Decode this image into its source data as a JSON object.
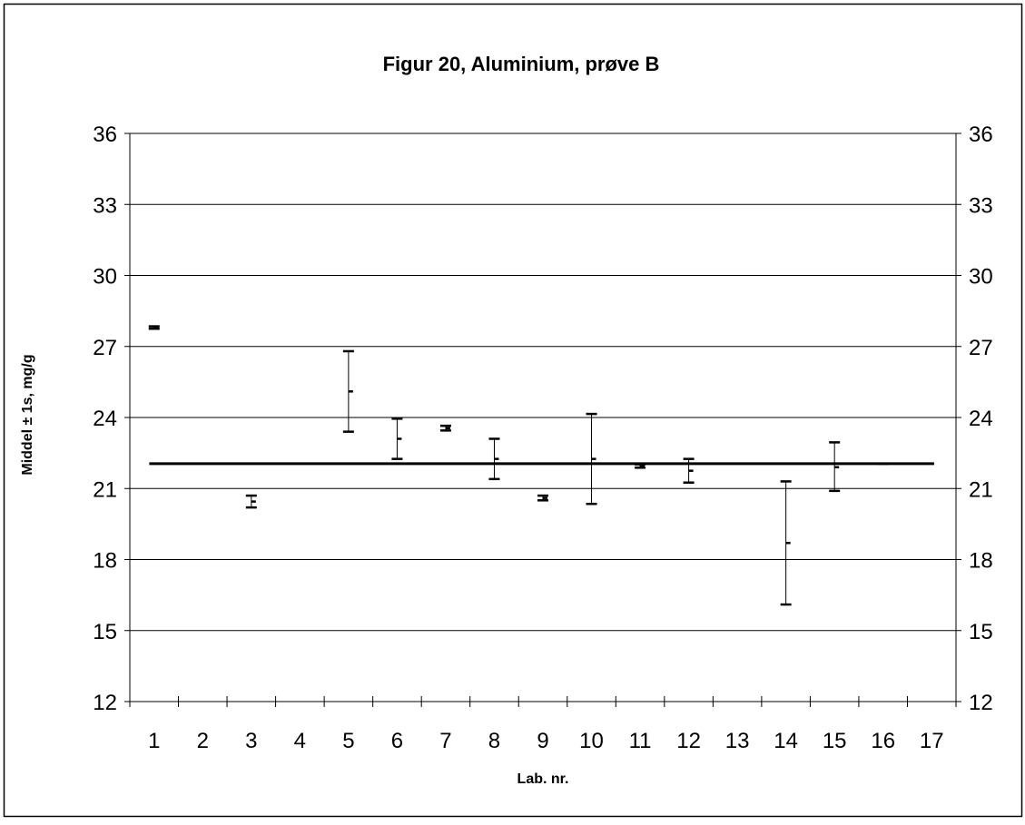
{
  "chart_data": {
    "type": "scatter",
    "title": "Figur 20, Aluminium, prøve B",
    "xlabel": "Lab. nr.",
    "ylabel": "Middel ± 1s, mg/g",
    "categories": [
      "1",
      "2",
      "3",
      "4",
      "5",
      "6",
      "7",
      "8",
      "9",
      "10",
      "11",
      "12",
      "13",
      "14",
      "15",
      "16",
      "17"
    ],
    "ylim": [
      12,
      36
    ],
    "yticks": [
      12,
      15,
      18,
      21,
      24,
      27,
      30,
      33,
      36
    ],
    "grid": true,
    "reference_line": 22.05,
    "series": [
      {
        "points": [
          {
            "lab": 1,
            "mean": 27.8,
            "low": 27.75,
            "high": 27.85
          },
          {
            "lab": 3,
            "mean": 20.45,
            "low": 20.2,
            "high": 20.7
          },
          {
            "lab": 5,
            "mean": 25.1,
            "low": 23.4,
            "high": 26.8
          },
          {
            "lab": 6,
            "mean": 23.1,
            "low": 22.25,
            "high": 23.95
          },
          {
            "lab": 7,
            "mean": 23.55,
            "low": 23.45,
            "high": 23.65
          },
          {
            "lab": 8,
            "mean": 22.25,
            "low": 21.4,
            "high": 23.1
          },
          {
            "lab": 9,
            "mean": 20.6,
            "low": 20.5,
            "high": 20.7
          },
          {
            "lab": 10,
            "mean": 22.25,
            "low": 20.35,
            "high": 24.15
          },
          {
            "lab": 11,
            "mean": 21.95,
            "low": 21.88,
            "high": 22.02
          },
          {
            "lab": 12,
            "mean": 21.75,
            "low": 21.25,
            "high": 22.25
          },
          {
            "lab": 14,
            "mean": 18.7,
            "low": 16.1,
            "high": 21.3
          },
          {
            "lab": 15,
            "mean": 21.9,
            "low": 20.9,
            "high": 22.95
          },
          {
            "lab": 16,
            "mean": 22.05,
            "low": 22.05,
            "high": 22.05
          }
        ]
      }
    ]
  },
  "colors": {
    "line": "#000000",
    "grid": "#000000",
    "background": "#ffffff"
  }
}
